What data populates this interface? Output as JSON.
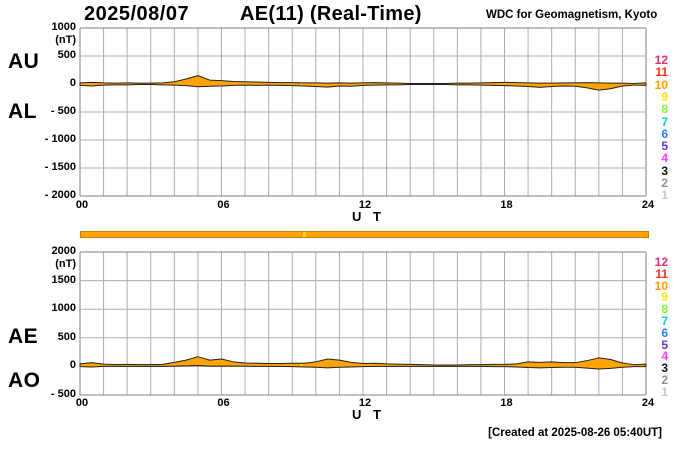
{
  "header": {
    "date": "2025/08/07",
    "title": "AE(11) (Real-Time)",
    "source": "WDC for Geomagnetism, Kyoto"
  },
  "footer": {
    "created_note": "[Created at 2025-08-26 05:40UT]"
  },
  "station_legend": {
    "items": [
      {
        "label": "12",
        "color": "#E6306E"
      },
      {
        "label": "11",
        "color": "#FF2D0E"
      },
      {
        "label": "10",
        "color": "#FF9C00"
      },
      {
        "label": "9",
        "color": "#FFE800"
      },
      {
        "label": "8",
        "color": "#86F431"
      },
      {
        "label": "7",
        "color": "#00D8E0"
      },
      {
        "label": "6",
        "color": "#2D7DFF"
      },
      {
        "label": "5",
        "color": "#6038D8"
      },
      {
        "label": "4",
        "color": "#FF38FF"
      },
      {
        "label": "3",
        "color": "#141414"
      },
      {
        "label": "2",
        "color": "#909090"
      },
      {
        "label": "1",
        "color": "#C8C8C8"
      }
    ]
  },
  "quality_bar": {
    "color": "#FFA300",
    "border_color": "#C88000",
    "marks": [
      {
        "hour": 9.4,
        "color": "#FFE800"
      }
    ]
  },
  "chart_data": [
    {
      "type": "area",
      "name": "AU-AL band",
      "left_labels": [
        "AU",
        "AL"
      ],
      "unit_label": "(nT)",
      "ut_label": "U T",
      "xlim": [
        0,
        24
      ],
      "ylim": [
        -2000,
        1000
      ],
      "grid": true,
      "fill_color": "#FFA300",
      "outline_color": "#222222",
      "ytick_labels": [
        "1000",
        "500",
        "0",
        "- 500",
        "- 1000",
        "- 1500",
        "- 2000"
      ],
      "xticks": [
        {
          "hour": 0,
          "label": "00"
        },
        {
          "hour": 6,
          "label": "06"
        },
        {
          "hour": 12,
          "label": "12"
        },
        {
          "hour": 18,
          "label": "18"
        },
        {
          "hour": 24,
          "label": "24"
        }
      ],
      "x_hours": [
        0,
        0.5,
        1,
        1.5,
        2,
        2.5,
        3,
        3.5,
        4,
        4.5,
        5,
        5.5,
        6,
        6.5,
        7,
        7.5,
        8,
        8.5,
        9,
        9.5,
        10,
        10.5,
        11,
        11.5,
        12,
        12.5,
        13,
        13.5,
        14,
        14.5,
        15,
        15.5,
        16,
        16.5,
        17,
        17.5,
        18,
        18.5,
        19,
        19.5,
        20,
        20.5,
        21,
        21.5,
        22,
        22.5,
        23,
        23.5,
        24
      ],
      "series": [
        {
          "name": "AU",
          "values": [
            20,
            30,
            20,
            15,
            20,
            15,
            15,
            20,
            40,
            90,
            150,
            70,
            60,
            45,
            40,
            35,
            30,
            25,
            25,
            20,
            20,
            15,
            20,
            15,
            20,
            25,
            20,
            15,
            10,
            10,
            10,
            10,
            15,
            15,
            20,
            25,
            30,
            25,
            20,
            15,
            15,
            20,
            20,
            25,
            20,
            15,
            15,
            10,
            20
          ]
        },
        {
          "name": "AL",
          "values": [
            -25,
            -35,
            -20,
            -15,
            -15,
            -10,
            -10,
            -15,
            -20,
            -30,
            -50,
            -40,
            -35,
            -25,
            -20,
            -25,
            -20,
            -25,
            -30,
            -35,
            -45,
            -55,
            -35,
            -40,
            -25,
            -20,
            -15,
            -15,
            -10,
            -10,
            -10,
            -10,
            -15,
            -15,
            -20,
            -25,
            -30,
            -35,
            -45,
            -60,
            -45,
            -35,
            -40,
            -70,
            -110,
            -85,
            -35,
            -20,
            -25
          ]
        }
      ],
      "marks": [
        {
          "hour": 9.4,
          "color": "#FFE800"
        }
      ]
    },
    {
      "type": "area",
      "name": "AE-AO band",
      "left_labels": [
        "AE",
        "AO"
      ],
      "unit_label": "(nT)",
      "ut_label": "U T",
      "xlim": [
        0,
        24
      ],
      "ylim": [
        -500,
        2000
      ],
      "grid": true,
      "fill_color": "#FFA300",
      "outline_color": "#222222",
      "ytick_labels": [
        "2000",
        "1500",
        "1000",
        "500",
        "0",
        "- 500"
      ],
      "xticks": [
        {
          "hour": 0,
          "label": "00"
        },
        {
          "hour": 6,
          "label": "06"
        },
        {
          "hour": 12,
          "label": "12"
        },
        {
          "hour": 18,
          "label": "18"
        },
        {
          "hour": 24,
          "label": "24"
        }
      ],
      "x_hours": [
        0,
        0.5,
        1,
        1.5,
        2,
        2.5,
        3,
        3.5,
        4,
        4.5,
        5,
        5.5,
        6,
        6.5,
        7,
        7.5,
        8,
        8.5,
        9,
        9.5,
        10,
        10.5,
        11,
        11.5,
        12,
        12.5,
        13,
        13.5,
        14,
        14.5,
        15,
        15.5,
        16,
        16.5,
        17,
        17.5,
        18,
        18.5,
        19,
        19.5,
        20,
        20.5,
        21,
        21.5,
        22,
        22.5,
        23,
        23.5,
        24
      ],
      "series": [
        {
          "name": "AE",
          "values": [
            45,
            65,
            40,
            30,
            35,
            30,
            30,
            35,
            70,
            110,
            170,
            110,
            130,
            80,
            60,
            55,
            50,
            50,
            55,
            55,
            80,
            130,
            110,
            70,
            50,
            55,
            45,
            40,
            35,
            30,
            25,
            25,
            25,
            30,
            30,
            35,
            35,
            45,
            80,
            70,
            80,
            65,
            65,
            100,
            150,
            120,
            60,
            30,
            40
          ]
        },
        {
          "name": "AO",
          "values": [
            -5,
            -10,
            0,
            0,
            0,
            0,
            0,
            0,
            5,
            10,
            15,
            5,
            5,
            5,
            5,
            0,
            0,
            0,
            -5,
            -10,
            -15,
            -25,
            -15,
            -10,
            -5,
            0,
            0,
            0,
            0,
            0,
            0,
            0,
            0,
            0,
            0,
            -5,
            -5,
            -10,
            -20,
            -25,
            -20,
            -15,
            -15,
            -30,
            -45,
            -35,
            -15,
            -5,
            -5
          ]
        }
      ],
      "marks": [
        {
          "hour": 9.4,
          "color": "#FFE800"
        }
      ]
    }
  ]
}
